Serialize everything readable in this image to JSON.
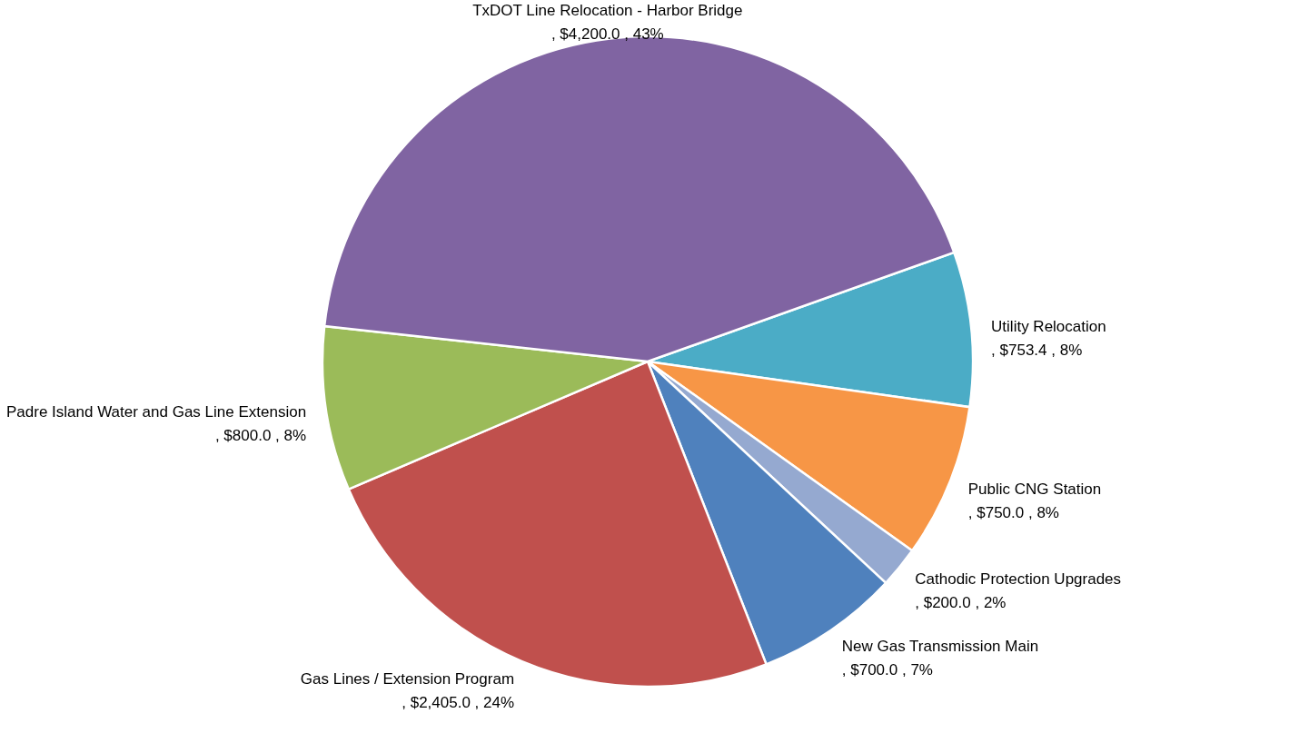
{
  "chart_data": {
    "type": "pie",
    "categories": [
      "Utility Relocation",
      "Public CNG Station",
      "Cathodic Protection Upgrades",
      "New Gas Transmission Main",
      "Gas Lines /  Extension Program",
      "Padre Island Water and Gas Line Extension",
      "TxDOT Line Relocation - Harbor Bridge"
    ],
    "values": [
      753.4,
      750.0,
      200.0,
      700.0,
      2405.0,
      800.0,
      4200.0
    ],
    "colors": [
      "#4bacc6",
      "#f79646",
      "#95a9d0",
      "#4f81bd",
      "#c0504d",
      "#9bbb59",
      "#8064a2"
    ],
    "value_labels": [
      ",  $753.4 , 8%",
      ",  $750.0 , 8%",
      ",  $200.0 , 2%",
      ",  $700.0 , 7%",
      ",  $2,405.0 , 24%",
      ",  $800.0 , 8%",
      ",  $4,200.0 , 43%"
    ]
  }
}
